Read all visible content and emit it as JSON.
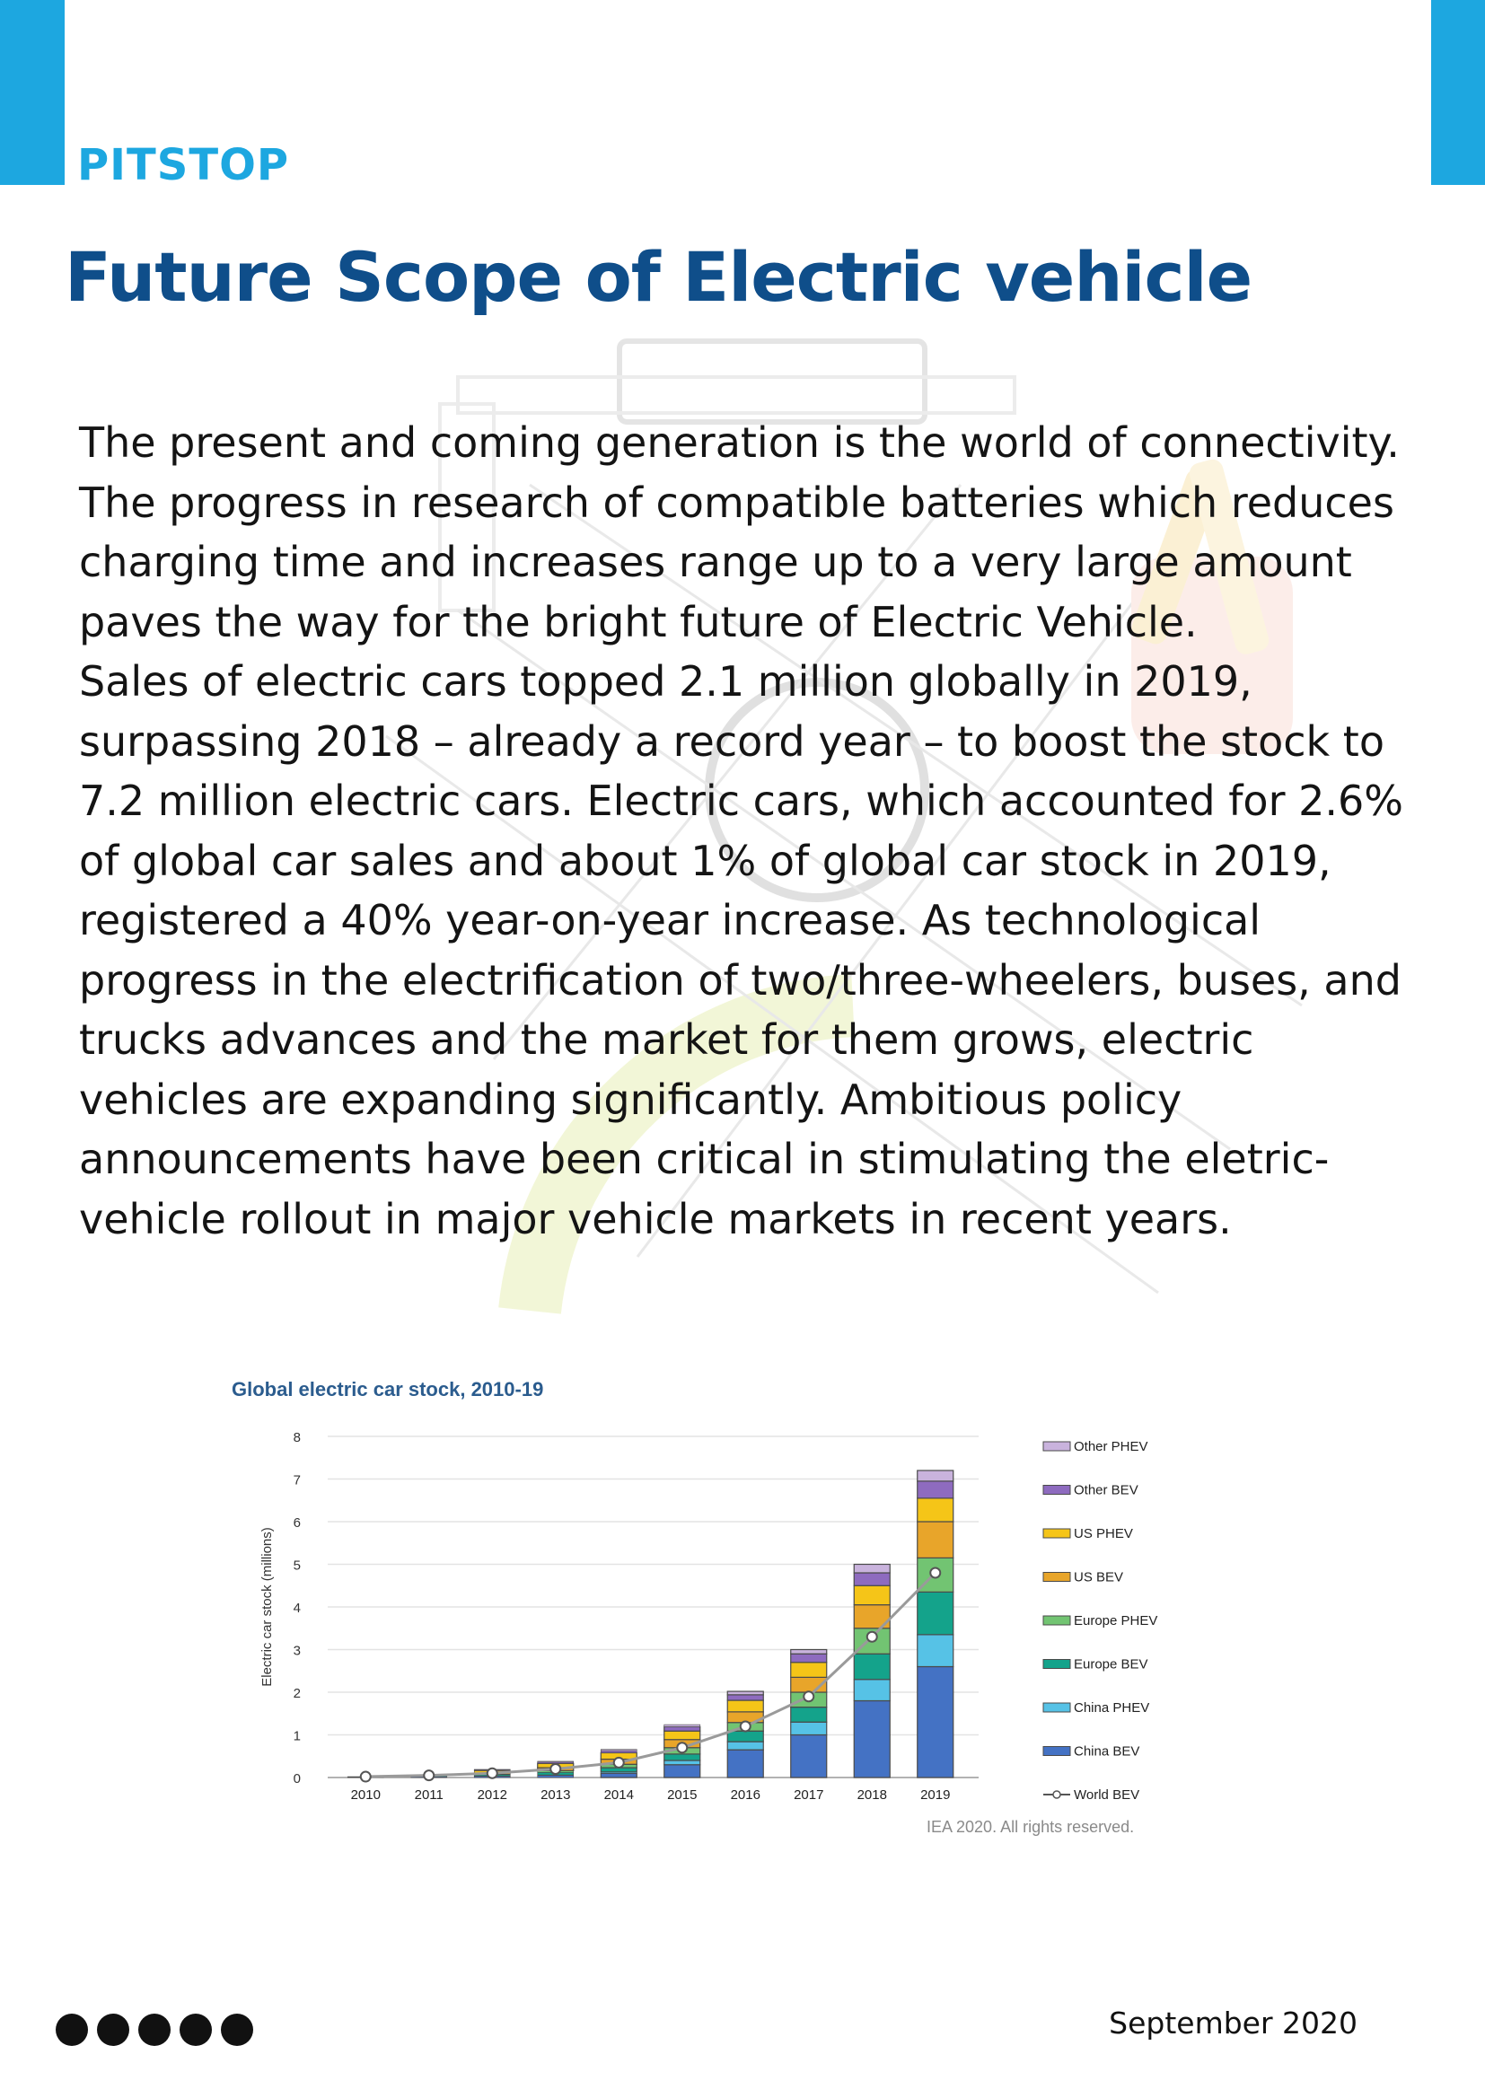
{
  "header": {
    "section_tag": "PITSTOP",
    "title": "Future Scope of Electric vehicle",
    "accent_color": "#1da7e0",
    "title_color": "#0f4e8a"
  },
  "body": {
    "paragraph_1": "The present and coming generation is the world of connectivity. The progress in research of compatible batteries which reduces charging time and increases range up to a very large amount paves the way for the bright future of Electric Vehicle.",
    "paragraph_2": "Sales of electric cars topped 2.1 million globally in 2019, surpassing 2018 – already a record year – to boost the stock to 7.2 million electric cars. Electric cars, which accounted for 2.6% of global car sales and about 1% of global car stock in 2019, registered a 40% year-on-year increase. As technological progress in the electrification of two/three-wheelers, buses, and trucks advances and the market for them grows, electric vehicles are expanding significantly. Ambitious policy announcements have been critical in stimulating the eletric-vehicle rollout in major vehicle markets in recent years."
  },
  "chart_data": {
    "type": "bar",
    "stacked": true,
    "title": "Global electric car stock, 2010-19",
    "ylabel": "Electric car stock (millions)",
    "xlabel": "",
    "ylim": [
      0,
      8
    ],
    "yticks": [
      "0",
      "1",
      "2",
      "3",
      "4",
      "5",
      "6",
      "7",
      "8"
    ],
    "grid": true,
    "legend_position": "right",
    "categories": [
      "2010",
      "2011",
      "2012",
      "2013",
      "2014",
      "2015",
      "2016",
      "2017",
      "2018",
      "2019"
    ],
    "series": [
      {
        "name": "China BEV",
        "color": "#4472c4",
        "values": [
          0.01,
          0.02,
          0.03,
          0.05,
          0.1,
          0.3,
          0.65,
          1.0,
          1.8,
          2.6
        ]
      },
      {
        "name": "China PHEV",
        "color": "#56c2e6",
        "values": [
          0.0,
          0.0,
          0.01,
          0.01,
          0.03,
          0.1,
          0.19,
          0.3,
          0.5,
          0.75
        ]
      },
      {
        "name": "Europe BEV",
        "color": "#14a38b",
        "values": [
          0.01,
          0.02,
          0.03,
          0.06,
          0.1,
          0.15,
          0.25,
          0.35,
          0.6,
          1.0
        ]
      },
      {
        "name": "Europe PHEV",
        "color": "#72c472",
        "values": [
          0.0,
          0.0,
          0.01,
          0.04,
          0.08,
          0.15,
          0.2,
          0.35,
          0.6,
          0.8
        ]
      },
      {
        "name": "US BEV",
        "color": "#e8a52a",
        "values": [
          0.0,
          0.01,
          0.03,
          0.07,
          0.12,
          0.19,
          0.25,
          0.35,
          0.55,
          0.85
        ]
      },
      {
        "name": "US PHEV",
        "color": "#f5c518",
        "values": [
          0.0,
          0.01,
          0.05,
          0.1,
          0.15,
          0.2,
          0.27,
          0.35,
          0.45,
          0.55
        ]
      },
      {
        "name": "Other BEV",
        "color": "#8e6bbf",
        "values": [
          0.0,
          0.0,
          0.02,
          0.03,
          0.05,
          0.1,
          0.13,
          0.2,
          0.3,
          0.4
        ]
      },
      {
        "name": "Other PHEV",
        "color": "#c9b3dd",
        "values": [
          0.0,
          0.0,
          0.01,
          0.02,
          0.03,
          0.05,
          0.08,
          0.1,
          0.2,
          0.25
        ]
      }
    ],
    "line_series": {
      "name": "World BEV",
      "color": "#9a9a9a",
      "values": [
        0.02,
        0.05,
        0.1,
        0.2,
        0.35,
        0.7,
        1.2,
        1.9,
        3.3,
        4.8
      ]
    },
    "source": "IEA 2020. All rights reserved."
  },
  "footer": {
    "page_dots": 5,
    "date": "September 2020"
  }
}
